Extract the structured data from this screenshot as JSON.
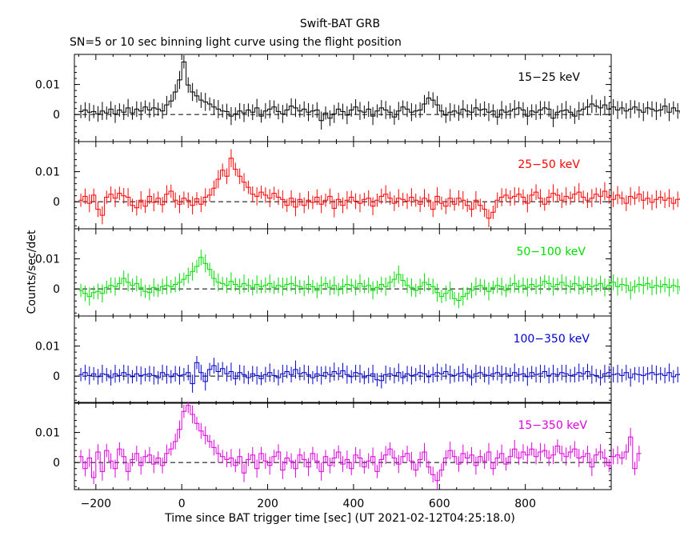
{
  "title": "Swift-BAT GRB",
  "subtitle": "SN=5 or 10 sec binning light curve using the flight position",
  "chart_data": {
    "type": "line",
    "step": true,
    "xlabel": "Time since BAT trigger time [sec] (UT 2021-02-12T04:25:18.0)",
    "ylabel": "Counts/sec/det",
    "xlim": [
      -250,
      1000
    ],
    "x_ticks": [
      -200,
      0,
      200,
      400,
      600,
      800
    ],
    "x_tick_labels": [
      "−200",
      "0",
      "200",
      "400",
      "600",
      "800"
    ],
    "y_ticks": [
      0,
      0.01
    ],
    "y_tick_labels": [
      "0",
      "0.01"
    ],
    "ylim": [
      -0.009,
      0.02
    ],
    "zero_line": "dashed",
    "bin_width": 10,
    "x_start": -240,
    "series": [
      {
        "name": "15−25 keV",
        "color": "#000000",
        "values": [
          0.001,
          0.0015,
          0.0008,
          0.001,
          0.0002,
          0.0012,
          0.0005,
          0.0018,
          0.0002,
          0.0015,
          0.0008,
          0.0022,
          0.0005,
          0.0018,
          0.0012,
          0.0025,
          0.0015,
          0.0022,
          0.0018,
          0.0012,
          0.0032,
          0.0045,
          0.0075,
          0.0115,
          0.0175,
          0.0098,
          0.0075,
          0.0062,
          0.0048,
          0.0042,
          0.0035,
          0.0025,
          0.0018,
          0.0012,
          0.001,
          -0.0005,
          0.0002,
          0.0012,
          0.0005,
          0.0015,
          0.0008,
          0.0022,
          -0.0005,
          0.0012,
          0.0018,
          0.0025,
          0.001,
          0.0002,
          0.0015,
          0.0028,
          0.0022,
          0.0012,
          0.0018,
          0.0008,
          0.0012,
          0.0015,
          -0.002,
          0.0005,
          -0.0012,
          0.0002,
          0.0018,
          0.001,
          -0.0002,
          0.0015,
          0.0025,
          0.0012,
          0.0008,
          0.0018,
          -0.0005,
          0.0012,
          0.0022,
          0.0015,
          0.0008,
          -0.0008,
          0.0012,
          0.0025,
          0.0018,
          0.0008,
          0.0012,
          0.0015,
          0.0035,
          0.0055,
          0.0048,
          0.0032,
          0.0012,
          -0.0002,
          0.0008,
          0.0012,
          0.0005,
          0.0018,
          0.0012,
          0.0008,
          0.0022,
          0.0015,
          0.0018,
          0.0008,
          0.0012,
          -0.0008,
          0.0015,
          0.0008,
          0.0012,
          0.0018,
          0.0022,
          0.0015,
          -0.0005,
          0.0012,
          0.0008,
          0.0015,
          0.0022,
          0.0018,
          -0.0012,
          0.0008,
          0.0012,
          0.0015,
          0.0008,
          -0.0005,
          0.0012,
          0.0018,
          0.0025,
          0.0035,
          0.0028,
          0.0022,
          0.0032,
          0.0018,
          0.0025,
          0.0015,
          0.0022,
          0.0012,
          0.0018,
          0.0025,
          0.0015,
          0.0008,
          0.0022,
          0.0018,
          0.0012,
          0.0015,
          0.0028,
          0.0008,
          0.0022,
          0.0012,
          0.0005,
          0.0015,
          0.0045,
          0.0018,
          0.0025,
          0.0035,
          0.0012,
          -0.0008,
          0.0015,
          0.0008,
          0.0022,
          0.0012,
          0.0018
        ]
      },
      {
        "name": "25−50 keV",
        "color": "#ff0000",
        "values": [
          0.0005,
          0.0018,
          -0.0005,
          0.0022,
          -0.0025,
          -0.0045,
          0.0015,
          0.0025,
          0.0012,
          0.0028,
          0.002,
          0.0015,
          -0.0012,
          -0.002,
          0.0005,
          -0.0015,
          0.0018,
          -0.0002,
          0.0012,
          -0.001,
          0.0025,
          0.0035,
          0.0005,
          -0.0008,
          0.0012,
          0.0005,
          -0.0012,
          0.001,
          -0.0008,
          0.0015,
          0.0022,
          0.0045,
          0.0075,
          0.0105,
          0.0085,
          0.0145,
          0.0108,
          0.0085,
          0.0065,
          0.0048,
          0.0025,
          0.0018,
          0.0032,
          0.0022,
          0.0012,
          0.0028,
          0.0015,
          0.0008,
          -0.0012,
          0.0012,
          -0.0018,
          0.0008,
          -0.0012,
          0.0005,
          -0.0002,
          0.0015,
          -0.0008,
          0.0005,
          0.0018,
          -0.0022,
          0.0008,
          -0.0012,
          0.0005,
          0.0015,
          0.0002,
          -0.0005,
          0.0008,
          0.0012,
          -0.0015,
          0.0005,
          0.0018,
          0.0025,
          0.0012,
          -0.0005,
          0.0012,
          0.0008,
          0.0002,
          0.0015,
          0.0005,
          -0.0008,
          0.0012,
          0.0005,
          -0.0025,
          0.0018,
          -0.0005,
          -0.0015,
          0.0012,
          -0.0008,
          0.0012,
          0.0005,
          -0.0012,
          -0.0025,
          0.0005,
          -0.0012,
          -0.0025,
          -0.0055,
          -0.0035,
          0.0005,
          0.0015,
          0.0022,
          0.0012,
          0.0018,
          0.0025,
          0.0015,
          -0.0005,
          0.0022,
          0.0032,
          0.0012,
          -0.0008,
          0.0015,
          0.0028,
          0.0022,
          0.0005,
          0.0018,
          0.0012,
          0.0025,
          0.0032,
          0.0015,
          0.0005,
          0.0012,
          0.0025,
          0.0018,
          0.0035,
          0.0015,
          0.0008,
          0.0022,
          0.0012,
          -0.0005,
          0.0018,
          0.0012,
          0.0025,
          0.0005,
          0.0012,
          -0.0002,
          0.0008,
          0.0015,
          0.0005,
          0.0012,
          -0.0005,
          0.0008,
          0.0012,
          0.0018,
          0.0005,
          0.0015,
          0.0035,
          0.0055,
          0.0048,
          0.0032,
          -0.0015,
          0.0035
        ]
      },
      {
        "name": "50−100 keV",
        "color": "#00dd00",
        "values": [
          -0.0005,
          -0.0015,
          -0.0025,
          -0.0012,
          -0.0008,
          -0.0015,
          0.0005,
          0.0012,
          0.0008,
          0.0018,
          0.0035,
          0.0022,
          0.0012,
          0.0018,
          0.0005,
          -0.0008,
          -0.0012,
          0.0005,
          -0.0005,
          0.0008,
          0.0012,
          0.0008,
          0.0015,
          0.0022,
          0.0032,
          0.0045,
          0.0058,
          0.0075,
          0.0105,
          0.0085,
          0.0065,
          0.0035,
          0.0022,
          0.0018,
          0.0012,
          0.0025,
          0.0015,
          0.0008,
          0.0018,
          0.0012,
          0.0005,
          0.0015,
          0.0008,
          0.0012,
          0.0018,
          0.0005,
          0.0012,
          0.0008,
          0.0015,
          0.0018,
          0.0012,
          0.0008,
          0.0002,
          0.0015,
          0.0008,
          -0.0005,
          0.0012,
          0.0018,
          0.0005,
          0.0012,
          -0.0002,
          0.0008,
          0.0015,
          0.0012,
          0.0005,
          0.0018,
          0.0008,
          0.0012,
          -0.0005,
          0.0005,
          0.0015,
          0.0008,
          0.0022,
          0.0032,
          0.0048,
          0.0028,
          0.0012,
          0.0005,
          -0.0005,
          0.0008,
          0.0022,
          0.0015,
          0.0008,
          -0.0012,
          -0.0025,
          -0.0015,
          -0.0005,
          -0.0032,
          -0.0038,
          -0.0025,
          -0.0015,
          -0.0005,
          0.0008,
          0.0012,
          0.0005,
          -0.0008,
          0.0005,
          0.0012,
          0.0008,
          -0.0005,
          0.0012,
          0.0018,
          0.0008,
          0.0012,
          0.0005,
          0.0015,
          0.0008,
          0.0012,
          0.0025,
          0.0018,
          0.0008,
          0.0015,
          0.0022,
          0.0012,
          0.0008,
          0.0018,
          0.0012,
          0.0005,
          0.0015,
          0.0008,
          0.0012,
          0.0018,
          0.0005,
          0.0012,
          0.0022,
          0.0008,
          0.0015,
          0.0012,
          -0.0005,
          0.0008,
          0.0015,
          0.0012,
          0.0018,
          0.0005,
          0.0012,
          0.0008,
          0.0015,
          0.0005,
          0.0012,
          0.0008,
          -0.0005,
          0.0012,
          0.0018,
          0.0005
        ]
      },
      {
        "name": "100−350 keV",
        "color": "#0000cc",
        "values": [
          0.0005,
          0.0012,
          0.0002,
          0.0008,
          -0.0002,
          0.0008,
          0.0005,
          -0.0005,
          0.0008,
          0.0002,
          0.0012,
          0.0005,
          -0.0002,
          0.0008,
          0.0002,
          0.0005,
          0.0008,
          0.0002,
          -0.0005,
          0.0012,
          0.0005,
          -0.0002,
          0.0008,
          0.0002,
          0.0005,
          0.0012,
          -0.0025,
          0.0045,
          0.0012,
          -0.0018,
          0.0022,
          0.0035,
          0.0015,
          0.0025,
          0.0008,
          0.0015,
          -0.0008,
          0.0012,
          0.0005,
          -0.0005,
          0.0008,
          0.0002,
          -0.0008,
          0.0005,
          0.0012,
          0.0002,
          -0.0005,
          0.0008,
          0.0015,
          0.0005,
          0.0022,
          0.0008,
          0.0012,
          0.0005,
          -0.0005,
          0.0008,
          0.0002,
          0.0012,
          0.0005,
          0.0015,
          0.0008,
          0.0018,
          0.0005,
          -0.0002,
          0.0012,
          0.0008,
          -0.0005,
          0.0002,
          0.0008,
          -0.0012,
          -0.0015,
          0.0005,
          0.0008,
          0.0002,
          0.0012,
          -0.0005,
          0.0008,
          0.0002,
          0.0005,
          0.0012,
          0.0008,
          -0.0002,
          0.0005,
          0.0012,
          0.0008,
          0.0015,
          0.0005,
          0.0002,
          0.0008,
          0.0012,
          0.0005,
          -0.0005,
          0.0008,
          0.0012,
          0.0005,
          0.0002,
          0.0008,
          0.0012,
          0.0005,
          0.0008,
          0.0002,
          0.0012,
          0.0005,
          0.0008,
          -0.0002,
          0.0012,
          0.0005,
          0.0008,
          0.0015,
          0.0002,
          0.0008,
          0.0005,
          0.0012,
          0.0008,
          0.0002,
          0.0005,
          0.0012,
          0.0008,
          0.0015,
          0.0005,
          0.0002,
          -0.0005,
          0.0008,
          0.0012,
          0.0005,
          0.0008,
          0.0002,
          0.0012,
          -0.0005,
          0.0008,
          0.0005,
          0.0002,
          0.0008,
          0.0012,
          0.0005,
          0.0008,
          0.0002,
          0.0012,
          -0.0002,
          0.0005,
          0.0008,
          0.0012,
          0.0005,
          -0.0008,
          -0.0012
        ]
      },
      {
        "name": "15−350 keV",
        "color": "#dd00dd",
        "values": [
          0.002,
          -0.002,
          0.0015,
          -0.005,
          0.0035,
          -0.003,
          0.004,
          0.0005,
          -0.002,
          0.0045,
          0.002,
          -0.003,
          0.001,
          0.003,
          -0.001,
          0.002,
          0.0025,
          -0.0005,
          0.0015,
          -0.001,
          0.003,
          0.0045,
          0.007,
          0.011,
          0.017,
          0.019,
          0.016,
          0.013,
          0.0105,
          0.009,
          0.007,
          0.005,
          0.003,
          0.002,
          0.001,
          0.0015,
          -0.001,
          0.002,
          -0.0035,
          0.001,
          0.0025,
          -0.002,
          0.003,
          0.0005,
          -0.001,
          0.002,
          0.0035,
          -0.0025,
          0.0015,
          0.0005,
          -0.002,
          0.0025,
          0.001,
          -0.0015,
          0.003,
          0.0005,
          -0.003,
          0.002,
          -0.001,
          0.0015,
          0.0035,
          -0.0005,
          0.001,
          -0.002,
          0.0025,
          0.0015,
          -0.0015,
          0.0005,
          0.002,
          -0.003,
          0.001,
          0.0025,
          0.0045,
          0.0015,
          -0.0005,
          0.002,
          0.003,
          0.0005,
          -0.0025,
          0.001,
          0.0035,
          -0.0015,
          -0.004,
          -0.006,
          -0.0025,
          0.0015,
          0.004,
          0.002,
          -0.0005,
          0.003,
          0.0015,
          0.0025,
          -0.001,
          0.002,
          0.0005,
          0.0035,
          -0.002,
          0.0015,
          0.003,
          -0.0005,
          0.002,
          0.0045,
          0.0015,
          0.0035,
          0.0025,
          0.0045,
          0.002,
          0.0035,
          0.004,
          0.0015,
          0.0025,
          0.0055,
          0.003,
          0.002,
          0.0035,
          0.0045,
          0.0015,
          0.002,
          0.003,
          -0.0015,
          0.0025,
          0.0035,
          0.0015,
          -0.001,
          0.002,
          0.0025,
          0.0015,
          0.0035,
          0.0085,
          -0.002,
          0.003
        ]
      }
    ]
  }
}
